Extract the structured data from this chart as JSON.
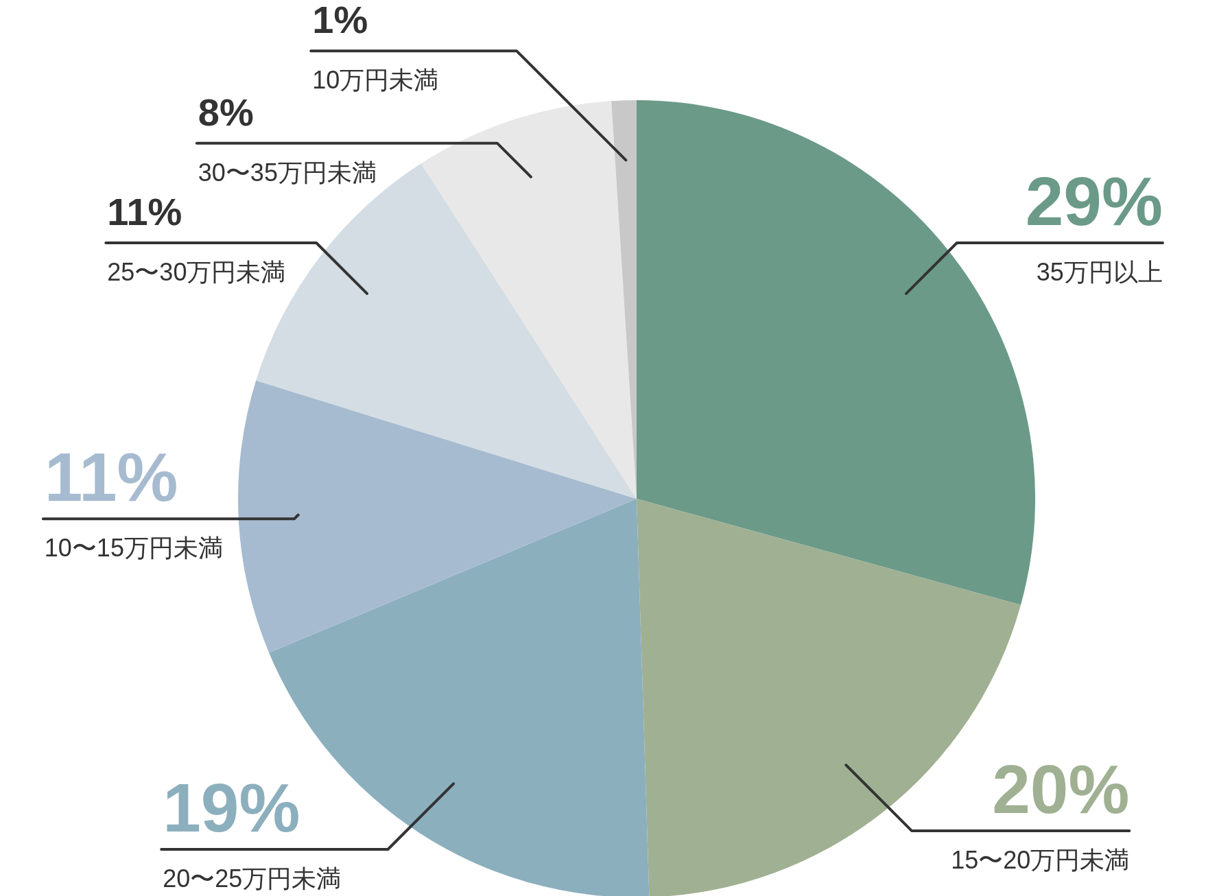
{
  "chart_data": {
    "type": "pie",
    "categories": [
      "35万円以上",
      "15〜20万円未満",
      "20〜25万円未満",
      "10〜15万円未満",
      "25〜30万円未満",
      "30〜35万円未満",
      "10万円未満"
    ],
    "values": [
      29,
      20,
      19,
      11,
      11,
      8,
      1
    ],
    "value_labels": [
      "29%",
      "20%",
      "19%",
      "11%",
      "11%",
      "8%",
      "1%"
    ],
    "colors": [
      "#6b9a89",
      "#a0b092",
      "#8cafbe",
      "#a7bbd0",
      "#d3dde3",
      "#e8e8e8",
      "#c8c8c8"
    ]
  }
}
